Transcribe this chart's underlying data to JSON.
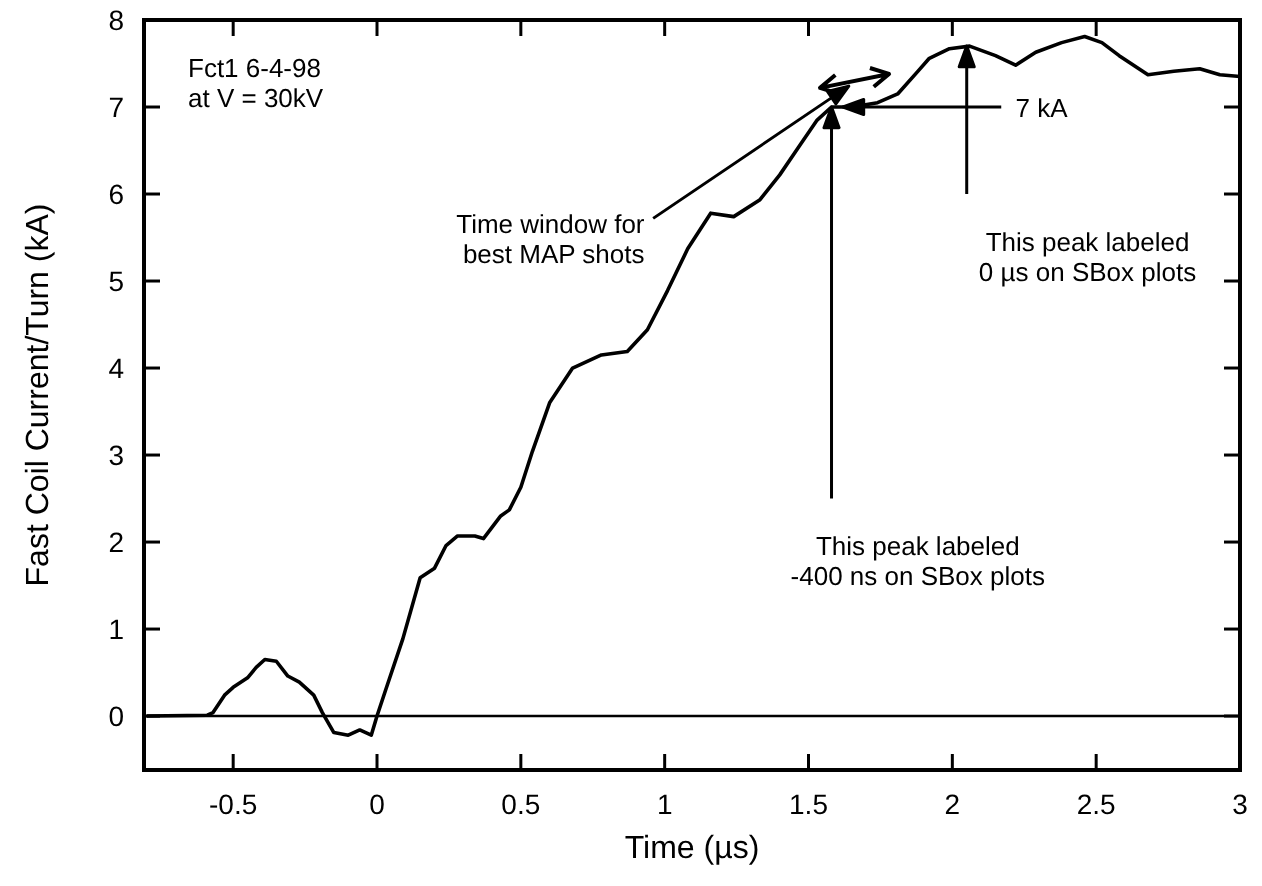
{
  "chart_data": {
    "type": "line",
    "xlabel": "Time (µs)",
    "ylabel": "Fast Coil Current/Turn (kA)",
    "xlim": [
      -0.81,
      3
    ],
    "ylim": [
      -0.62,
      8
    ],
    "xticks": [
      -0.5,
      0,
      0.5,
      1,
      1.5,
      2,
      2.5,
      3
    ],
    "yticks": [
      0,
      1,
      2,
      3,
      4,
      5,
      6,
      7,
      8
    ],
    "ref_lines": [
      {
        "axis": "y",
        "value": 0,
        "color": "#000000"
      }
    ],
    "series": [
      {
        "color": "#000000",
        "x": [
          -0.8,
          -0.59,
          -0.57,
          -0.53,
          -0.5,
          -0.45,
          -0.42,
          -0.39,
          -0.35,
          -0.31,
          -0.27,
          -0.22,
          -0.19,
          -0.15,
          -0.1,
          -0.06,
          -0.02,
          0,
          0.03,
          0.09,
          0.15,
          0.2,
          0.24,
          0.28,
          0.34,
          0.37,
          0.43,
          0.46,
          0.5,
          0.54,
          0.6,
          0.68,
          0.78,
          0.87,
          0.94,
          1.01,
          1.08,
          1.16,
          1.24,
          1.33,
          1.4,
          1.47,
          1.53,
          1.58,
          1.65,
          1.74,
          1.81,
          1.88,
          1.92,
          1.99,
          2.06,
          2.15,
          2.22,
          2.29,
          2.38,
          2.46,
          2.52,
          2.58,
          2.68,
          2.77,
          2.86,
          2.93,
          3
        ],
        "values": [
          0,
          0.01,
          0.04,
          0.24,
          0.33,
          0.44,
          0.56,
          0.65,
          0.63,
          0.46,
          0.39,
          0.24,
          0.04,
          -0.19,
          -0.22,
          -0.16,
          -0.22,
          0,
          0.3,
          0.89,
          1.59,
          1.7,
          1.96,
          2.07,
          2.07,
          2.04,
          2.3,
          2.37,
          2.63,
          3.04,
          3.6,
          4.0,
          4.15,
          4.19,
          4.44,
          4.89,
          5.37,
          5.78,
          5.74,
          5.93,
          6.22,
          6.56,
          6.85,
          7.0,
          7.0,
          7.05,
          7.15,
          7.41,
          7.56,
          7.67,
          7.7,
          7.59,
          7.48,
          7.63,
          7.74,
          7.81,
          7.74,
          7.59,
          7.37,
          7.41,
          7.44,
          7.37,
          7.35
        ]
      }
    ],
    "annotations": [
      "Fct1 6-4-98\nat V = 30kV",
      "Time window for\nbest MAP shots",
      {
        "text": "7 kA",
        "x": 1.62,
        "y": 7.0
      },
      "This peak labeled\n0 µs on SBox plots",
      {
        "text": "This peak labeled\n-400 ns on SBox plots",
        "x": 1.58,
        "y": 7.0
      }
    ],
    "grid": false
  }
}
